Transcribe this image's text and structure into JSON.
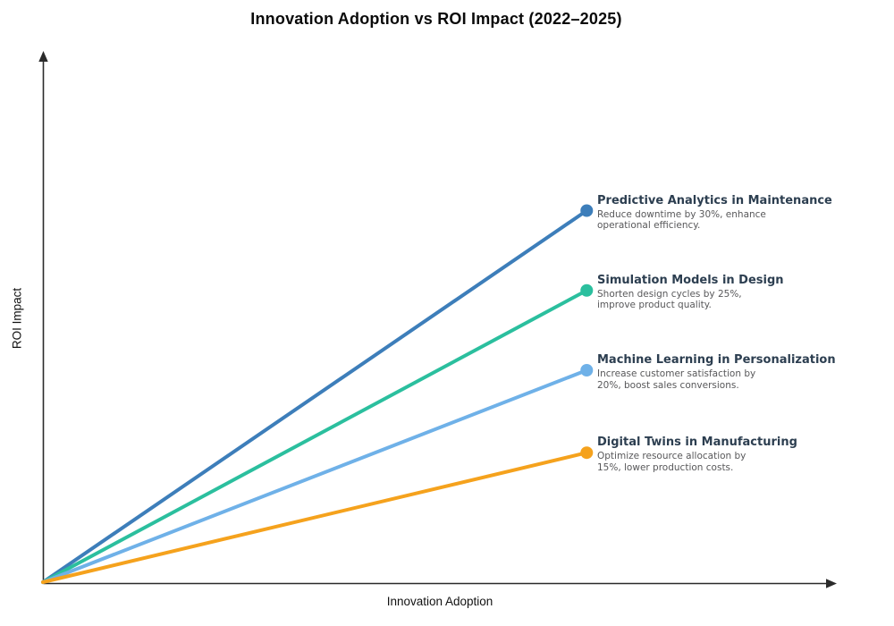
{
  "chart_data": {
    "type": "line",
    "title": "Innovation Adoption vs ROI Impact (2022–2025)",
    "xlabel": "Innovation Adoption",
    "ylabel": "ROI Impact",
    "gridlines": false,
    "ticks": false,
    "tick_labels": [],
    "axis_arrows": true,
    "axis_color": "#2b2b2b",
    "x_range": [
      0,
      1
    ],
    "y_range": [
      0,
      1
    ],
    "legend": "inline-endpoint-labels",
    "label_title_color": "#2c3e50",
    "label_desc_color": "#58585a",
    "series": [
      {
        "name": "Predictive Analytics in Maintenance",
        "description_lines": [
          "Reduce downtime by 30%, enhance",
          "operational efficiency."
        ],
        "color": "#3d7eba",
        "x": [
          0,
          0.685
        ],
        "y": [
          0,
          0.7
        ]
      },
      {
        "name": "Simulation Models in Design",
        "description_lines": [
          "Shorten design cycles by 25%,",
          "improve product quality."
        ],
        "color": "#2bbf9e",
        "x": [
          0,
          0.685
        ],
        "y": [
          0,
          0.55
        ]
      },
      {
        "name": "Machine Learning in Personalization",
        "description_lines": [
          "Increase customer satisfaction by",
          "20%, boost sales conversions."
        ],
        "color": "#6fb1e8",
        "x": [
          0,
          0.685
        ],
        "y": [
          0,
          0.4
        ]
      },
      {
        "name": "Digital Twins in Manufacturing",
        "description_lines": [
          "Optimize resource allocation by",
          "15%, lower production costs."
        ],
        "color": "#f5a21d",
        "x": [
          0,
          0.685
        ],
        "y": [
          0,
          0.245
        ]
      }
    ]
  }
}
